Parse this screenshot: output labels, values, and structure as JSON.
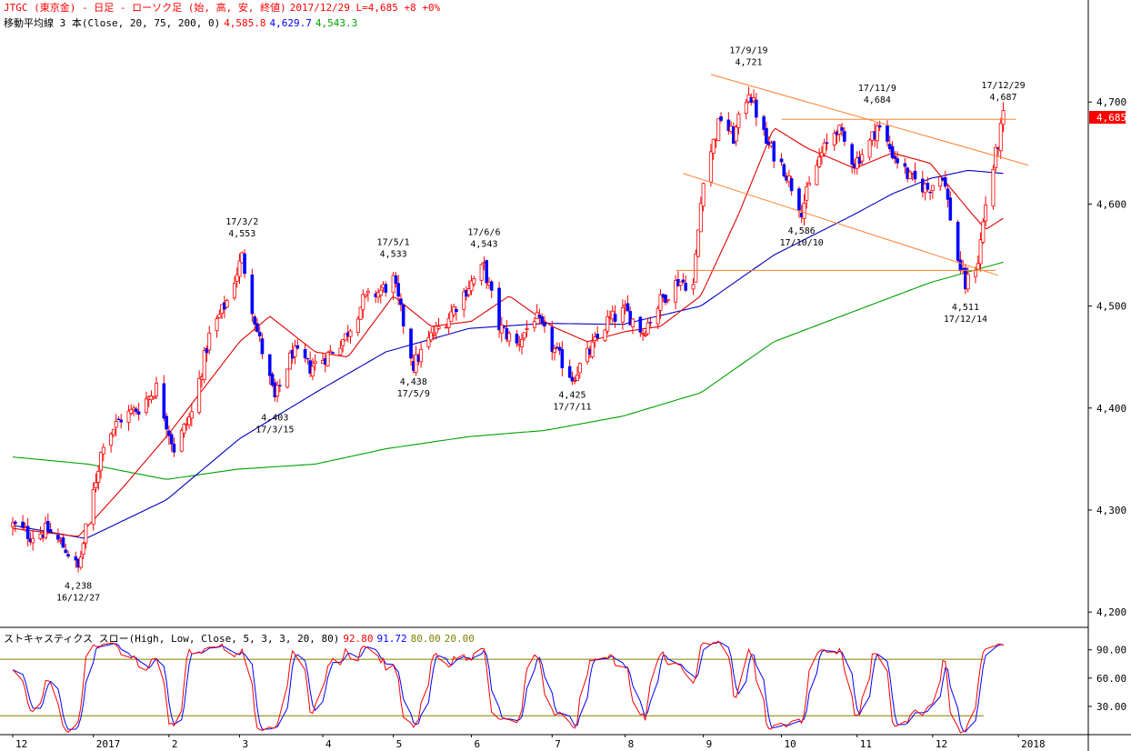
{
  "header": {
    "symbol_title": "JTGC (東京金) - 日足 - ローソク足 (始, 高, 安, 終値)",
    "status": "2017/12/29  L=4,685  +8   +0%",
    "ma_label": "移動平均線 3 本(Close, 20, 75, 200, 0)",
    "ma20_value": "4,585.8",
    "ma75_value": "4,629.7",
    "ma200_value": "4,543.3"
  },
  "stoch_header": {
    "label": "ストキャスティクス スロー(High, Low, Close, 5, 3, 3, 20, 80)",
    "k_value": "92.80",
    "d_value": "91.72",
    "upper_value": "80.00",
    "lower_value": "20.00"
  },
  "colors": {
    "candle": "#0000ff",
    "wick": "#ff0000",
    "ma20": "#e00000",
    "ma75": "#0000c0",
    "ma200": "#00a000",
    "trend": "#ff8030",
    "stoch_k": "#ff0000",
    "stoch_d": "#0000ff",
    "stoch_band": "#808000",
    "price_tag_bg": "#ff0000"
  },
  "chart_data": {
    "type": "candlestick",
    "y_ticks": [
      "4,700",
      "4,600",
      "4,500",
      "4,400",
      "4,300",
      "4,200"
    ],
    "y_tick_values": [
      4700,
      4600,
      4500,
      4400,
      4300,
      4200
    ],
    "ylim": [
      4185,
      4800
    ],
    "x_start": "2016-12-01",
    "x_end": "2018-01-31",
    "x_ticks": [
      {
        "label": "12",
        "date": "2016-12-01"
      },
      {
        "label": "2017",
        "date": "2017-01-02"
      },
      {
        "label": "2",
        "date": "2017-02-01"
      },
      {
        "label": "3",
        "date": "2017-03-01"
      },
      {
        "label": "4",
        "date": "2017-04-03"
      },
      {
        "label": "5",
        "date": "2017-05-01"
      },
      {
        "label": "6",
        "date": "2017-06-01"
      },
      {
        "label": "7",
        "date": "2017-07-03"
      },
      {
        "label": "8",
        "date": "2017-08-01"
      },
      {
        "label": "9",
        "date": "2017-09-01"
      },
      {
        "label": "10",
        "date": "2017-10-02"
      },
      {
        "label": "11",
        "date": "2017-11-01"
      },
      {
        "label": "12",
        "date": "2017-12-01"
      },
      {
        "label": "2018",
        "date": "2018-01-04"
      }
    ],
    "last_price_tag": {
      "text": "4,685",
      "value": 4685
    },
    "annotations": [
      {
        "date": "2016-12-27",
        "value": 4238,
        "lines": [
          "4,238",
          "16/12/27"
        ],
        "pos": "below"
      },
      {
        "date": "2017-03-02",
        "value": 4553,
        "lines": [
          "17/3/2",
          "4,553"
        ],
        "pos": "above"
      },
      {
        "date": "2017-03-15",
        "value": 4403,
        "lines": [
          "4,403",
          "17/3/15"
        ],
        "pos": "below"
      },
      {
        "date": "2017-05-01",
        "value": 4533,
        "lines": [
          "17/5/1",
          "4,533"
        ],
        "pos": "above"
      },
      {
        "date": "2017-05-09",
        "value": 4438,
        "lines": [
          "4,438",
          "17/5/9"
        ],
        "pos": "below"
      },
      {
        "date": "2017-06-06",
        "value": 4543,
        "lines": [
          "17/6/6",
          "4,543"
        ],
        "pos": "above"
      },
      {
        "date": "2017-07-11",
        "value": 4425,
        "lines": [
          "4,425",
          "17/7/11"
        ],
        "pos": "below"
      },
      {
        "date": "2017-09-19",
        "value": 4721,
        "lines": [
          "17/9/19",
          "4,721"
        ],
        "pos": "above"
      },
      {
        "date": "2017-10-10",
        "value": 4586,
        "lines": [
          "4,586",
          "17/10/10"
        ],
        "pos": "below"
      },
      {
        "date": "2017-11-09",
        "value": 4684,
        "lines": [
          "17/11/9",
          "4,684"
        ],
        "pos": "above"
      },
      {
        "date": "2017-12-14",
        "value": 4511,
        "lines": [
          "4,511",
          "17/12/14"
        ],
        "pos": "below"
      },
      {
        "date": "2017-12-29",
        "value": 4687,
        "lines": [
          "17/12/29",
          "4,687"
        ],
        "pos": "above"
      }
    ],
    "trend_lines": [
      {
        "from": {
          "date": "2017-09-04",
          "value": 4727
        },
        "to": {
          "date": "2018-01-08",
          "value": 4638
        }
      },
      {
        "from": {
          "date": "2017-08-24",
          "value": 4630
        },
        "to": {
          "date": "2017-12-27",
          "value": 4530
        }
      },
      {
        "from": {
          "date": "2017-10-02",
          "value": 4683
        },
        "to": {
          "date": "2018-01-03",
          "value": 4683
        }
      },
      {
        "from": {
          "date": "2017-08-21",
          "value": 4535
        },
        "to": {
          "date": "2017-12-26",
          "value": 4535
        }
      }
    ],
    "ma_anchors": {
      "ma20": [
        [
          "2016-12-01",
          4282
        ],
        [
          "2016-12-27",
          4274
        ],
        [
          "2017-01-13",
          4320
        ],
        [
          "2017-02-01",
          4375
        ],
        [
          "2017-03-01",
          4465
        ],
        [
          "2017-03-13",
          4490
        ],
        [
          "2017-03-31",
          4455
        ],
        [
          "2017-04-13",
          4450
        ],
        [
          "2017-05-01",
          4510
        ],
        [
          "2017-05-16",
          4480
        ],
        [
          "2017-06-01",
          4485
        ],
        [
          "2017-06-16",
          4510
        ],
        [
          "2017-07-03",
          4480
        ],
        [
          "2017-07-17",
          4465
        ],
        [
          "2017-08-01",
          4475
        ],
        [
          "2017-08-15",
          4480
        ],
        [
          "2017-08-31",
          4510
        ],
        [
          "2017-09-15",
          4590
        ],
        [
          "2017-09-29",
          4675
        ],
        [
          "2017-10-12",
          4655
        ],
        [
          "2017-10-31",
          4635
        ],
        [
          "2017-11-15",
          4650
        ],
        [
          "2017-11-30",
          4640
        ],
        [
          "2017-12-15",
          4595
        ],
        [
          "2017-12-22",
          4575
        ],
        [
          "2017-12-29",
          4586
        ]
      ],
      "ma75": [
        [
          "2016-12-01",
          4285
        ],
        [
          "2016-12-30",
          4272
        ],
        [
          "2017-01-31",
          4310
        ],
        [
          "2017-03-01",
          4370
        ],
        [
          "2017-03-31",
          4415
        ],
        [
          "2017-04-28",
          4455
        ],
        [
          "2017-05-31",
          4478
        ],
        [
          "2017-06-30",
          4483
        ],
        [
          "2017-07-31",
          4482
        ],
        [
          "2017-08-31",
          4500
        ],
        [
          "2017-09-29",
          4550
        ],
        [
          "2017-10-31",
          4590
        ],
        [
          "2017-11-15",
          4610
        ],
        [
          "2017-11-30",
          4625
        ],
        [
          "2017-12-15",
          4633
        ],
        [
          "2017-12-29",
          4630
        ]
      ],
      "ma200": [
        [
          "2016-12-01",
          4352
        ],
        [
          "2016-12-31",
          4345
        ],
        [
          "2017-01-31",
          4330
        ],
        [
          "2017-02-28",
          4340
        ],
        [
          "2017-03-31",
          4345
        ],
        [
          "2017-04-28",
          4360
        ],
        [
          "2017-05-31",
          4372
        ],
        [
          "2017-06-30",
          4378
        ],
        [
          "2017-07-31",
          4392
        ],
        [
          "2017-08-31",
          4415
        ],
        [
          "2017-09-29",
          4465
        ],
        [
          "2017-10-31",
          4495
        ],
        [
          "2017-11-30",
          4523
        ],
        [
          "2017-12-29",
          4543
        ]
      ]
    },
    "price_path": [
      [
        "2016-12-01",
        4285
      ],
      [
        "2016-12-08",
        4275
      ],
      [
        "2016-12-15",
        4280
      ],
      [
        "2016-12-22",
        4262
      ],
      [
        "2016-12-27",
        4242
      ],
      [
        "2016-12-30",
        4280
      ],
      [
        "2017-01-06",
        4368
      ],
      [
        "2017-01-13",
        4390
      ],
      [
        "2017-01-20",
        4400
      ],
      [
        "2017-01-27",
        4420
      ],
      [
        "2017-02-03",
        4360
      ],
      [
        "2017-02-10",
        4395
      ],
      [
        "2017-02-17",
        4470
      ],
      [
        "2017-02-24",
        4505
      ],
      [
        "2017-03-02",
        4548
      ],
      [
        "2017-03-08",
        4475
      ],
      [
        "2017-03-15",
        4408
      ],
      [
        "2017-03-22",
        4455
      ],
      [
        "2017-03-29",
        4440
      ],
      [
        "2017-04-05",
        4452
      ],
      [
        "2017-04-12",
        4470
      ],
      [
        "2017-04-19",
        4505
      ],
      [
        "2017-04-26",
        4515
      ],
      [
        "2017-05-01",
        4525
      ],
      [
        "2017-05-09",
        4442
      ],
      [
        "2017-05-16",
        4470
      ],
      [
        "2017-05-23",
        4490
      ],
      [
        "2017-05-31",
        4520
      ],
      [
        "2017-06-06",
        4538
      ],
      [
        "2017-06-12",
        4480
      ],
      [
        "2017-06-19",
        4462
      ],
      [
        "2017-06-26",
        4490
      ],
      [
        "2017-07-03",
        4460
      ],
      [
        "2017-07-11",
        4430
      ],
      [
        "2017-07-18",
        4455
      ],
      [
        "2017-07-25",
        4485
      ],
      [
        "2017-08-01",
        4495
      ],
      [
        "2017-08-08",
        4475
      ],
      [
        "2017-08-15",
        4505
      ],
      [
        "2017-08-22",
        4525
      ],
      [
        "2017-08-28",
        4520
      ],
      [
        "2017-09-01",
        4628
      ],
      [
        "2017-09-08",
        4685
      ],
      [
        "2017-09-13",
        4665
      ],
      [
        "2017-09-19",
        4712
      ],
      [
        "2017-09-26",
        4660
      ],
      [
        "2017-10-03",
        4635
      ],
      [
        "2017-10-10",
        4595
      ],
      [
        "2017-10-17",
        4645
      ],
      [
        "2017-10-24",
        4675
      ],
      [
        "2017-10-31",
        4640
      ],
      [
        "2017-11-06",
        4660
      ],
      [
        "2017-11-09",
        4677
      ],
      [
        "2017-11-15",
        4650
      ],
      [
        "2017-11-22",
        4625
      ],
      [
        "2017-11-29",
        4615
      ],
      [
        "2017-12-05",
        4630
      ],
      [
        "2017-12-11",
        4545
      ],
      [
        "2017-12-14",
        4520
      ],
      [
        "2017-12-19",
        4545
      ],
      [
        "2017-12-22",
        4600
      ],
      [
        "2017-12-27",
        4660
      ],
      [
        "2017-12-29",
        4685
      ]
    ],
    "stochastic": {
      "y_ticks": [
        "90.00",
        "60.00",
        "30.00"
      ],
      "y_tick_values": [
        90,
        60,
        30
      ],
      "ylim": [
        0,
        110
      ],
      "levels": [
        80,
        20
      ]
    }
  }
}
